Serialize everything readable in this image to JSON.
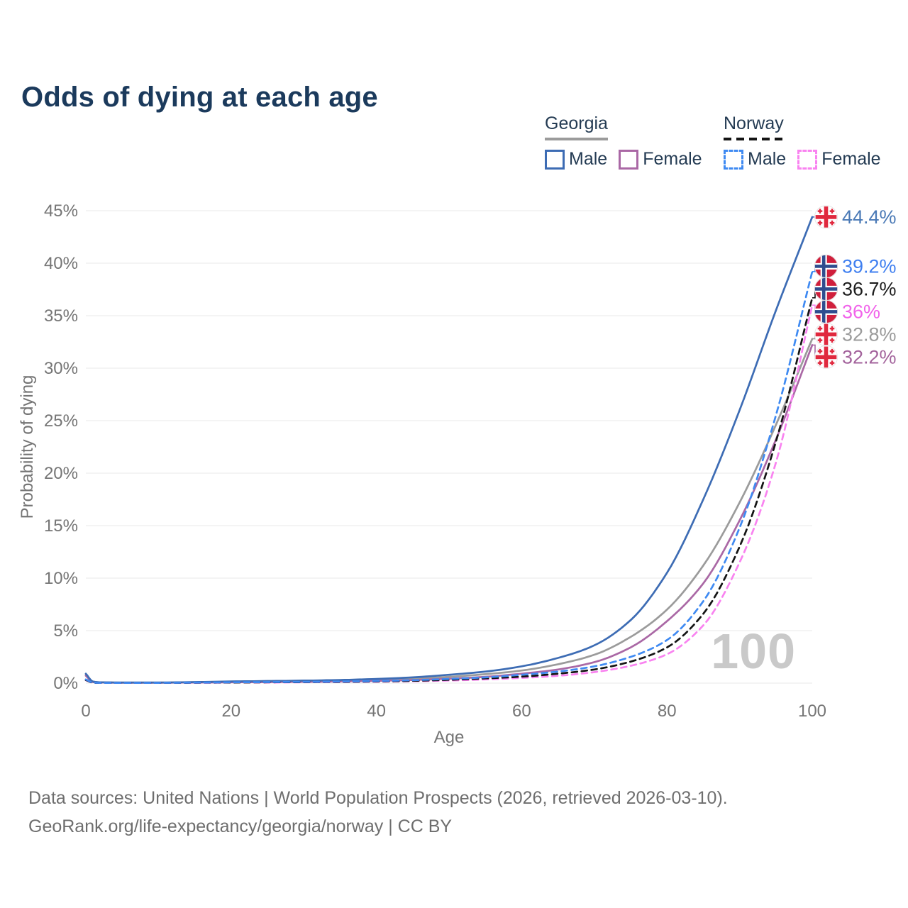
{
  "title": "Odds of dying at each age",
  "legend": {
    "groups": [
      {
        "name": "Georgia",
        "line_style": "solid",
        "underline_color": "#9b9b9b",
        "items": [
          {
            "label": "Male",
            "color": "#3d6cb4"
          },
          {
            "label": "Female",
            "color": "#aa68a5"
          }
        ]
      },
      {
        "name": "Norway",
        "line_style": "dashed",
        "underline_color": "#141414",
        "items": [
          {
            "label": "Male",
            "color": "#3f8af2"
          },
          {
            "label": "Female",
            "color": "#f983f0"
          }
        ]
      }
    ]
  },
  "chart_data": {
    "type": "line",
    "title": "Odds of dying at each age",
    "xlabel": "Age",
    "ylabel": "Probability of dying",
    "xlim": [
      0,
      100
    ],
    "ylim": [
      0,
      45
    ],
    "xticks": [
      0,
      20,
      40,
      60,
      80,
      100
    ],
    "yticks": [
      0,
      5,
      10,
      15,
      20,
      25,
      30,
      35,
      40,
      45
    ],
    "ytick_suffix": "%",
    "grid": "horizontal",
    "legend_position": "top-right",
    "hover_age_indicator": "100",
    "x": [
      0,
      1,
      2,
      5,
      10,
      15,
      20,
      25,
      30,
      35,
      40,
      45,
      50,
      55,
      60,
      65,
      70,
      75,
      80,
      85,
      90,
      95,
      100
    ],
    "series": [
      {
        "name": "Georgia both sexes",
        "country": "georgia",
        "sex": "total",
        "style": "solid",
        "color": "#9b9b9b",
        "end_label": "32.8%",
        "end_label_color": "#9b9b9b",
        "end_value": 32.8,
        "values": [
          0.8,
          0.12,
          0.07,
          0.05,
          0.05,
          0.08,
          0.12,
          0.15,
          0.18,
          0.23,
          0.3,
          0.42,
          0.6,
          0.85,
          1.2,
          1.8,
          2.7,
          4.4,
          7.0,
          11.2,
          17.2,
          24.6,
          32.8
        ]
      },
      {
        "name": "Georgia female",
        "country": "georgia",
        "sex": "female",
        "style": "solid",
        "color": "#aa68a5",
        "end_label": "32.2%",
        "end_label_color": "#a3639c",
        "end_value": 32.2,
        "values": [
          0.7,
          0.1,
          0.06,
          0.04,
          0.04,
          0.06,
          0.08,
          0.1,
          0.12,
          0.16,
          0.22,
          0.3,
          0.42,
          0.6,
          0.9,
          1.3,
          2.0,
          3.4,
          5.9,
          9.5,
          15.5,
          23.2,
          32.2
        ]
      },
      {
        "name": "Georgia male",
        "country": "georgia",
        "sex": "male",
        "style": "solid",
        "color": "#3d6cb4",
        "end_label": "44.4%",
        "end_label_color": "#4a79b6",
        "end_value": 44.4,
        "values": [
          0.9,
          0.15,
          0.08,
          0.06,
          0.06,
          0.1,
          0.16,
          0.2,
          0.24,
          0.3,
          0.4,
          0.55,
          0.8,
          1.1,
          1.6,
          2.4,
          3.6,
          6.0,
          10.5,
          17.5,
          26.0,
          35.5,
          44.4
        ]
      },
      {
        "name": "Norway female",
        "country": "norway",
        "sex": "female",
        "style": "dashed",
        "color": "#f983f0",
        "end_label": "36%",
        "end_label_color": "#f163ea",
        "end_value": 36.0,
        "values": [
          0.28,
          0.04,
          0.02,
          0.02,
          0.02,
          0.03,
          0.05,
          0.06,
          0.08,
          0.1,
          0.13,
          0.18,
          0.25,
          0.35,
          0.5,
          0.7,
          1.05,
          1.65,
          2.75,
          5.5,
          11.5,
          21.0,
          36.0
        ]
      },
      {
        "name": "Norway both sexes",
        "country": "norway",
        "sex": "total",
        "style": "dashed",
        "color": "#141414",
        "end_label": "36.7%",
        "end_label_color": "#1c1c1c",
        "end_value": 36.7,
        "values": [
          0.3,
          0.04,
          0.03,
          0.03,
          0.03,
          0.04,
          0.06,
          0.08,
          0.1,
          0.12,
          0.16,
          0.22,
          0.32,
          0.45,
          0.62,
          0.9,
          1.3,
          2.05,
          3.4,
          6.6,
          13.0,
          23.0,
          36.7
        ]
      },
      {
        "name": "Norway male",
        "country": "norway",
        "sex": "male",
        "style": "dashed",
        "color": "#3f8af2",
        "end_label": "39.2%",
        "end_label_color": "#3f7ff0",
        "end_value": 39.2,
        "values": [
          0.35,
          0.05,
          0.03,
          0.03,
          0.03,
          0.05,
          0.08,
          0.1,
          0.12,
          0.15,
          0.2,
          0.28,
          0.4,
          0.55,
          0.8,
          1.1,
          1.6,
          2.5,
          4.1,
          7.8,
          14.8,
          25.5,
          39.2
        ]
      }
    ]
  },
  "footer": {
    "line1": "Data sources: United Nations | World Population Prospects (2026, retrieved 2026-03-10).",
    "line2": "GeoRank.org/life-expectancy/georgia/norway | CC BY"
  }
}
